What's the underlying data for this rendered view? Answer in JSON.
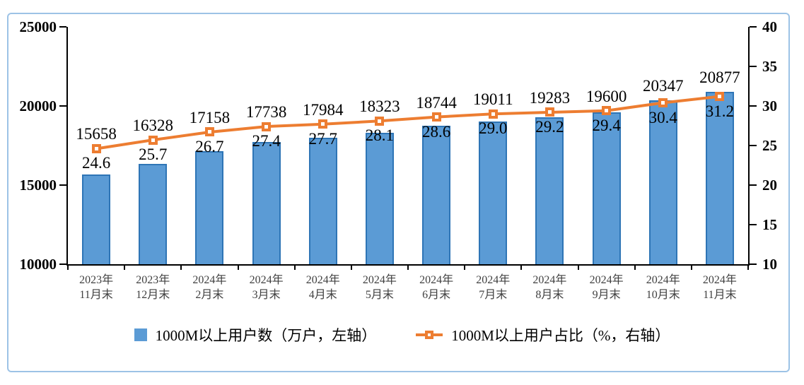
{
  "colors": {
    "bar_fill": "#5B9BD5",
    "bar_border": "#2E75B6",
    "line": "#ED7D31",
    "axis": "#000000",
    "frame_border": "#9DC3E6",
    "x_label": "#404040"
  },
  "legend": {
    "bar_label": "1000M以上用户数（万户，左轴）",
    "line_label": "1000M以上用户占比（%，右轴）"
  },
  "chart_data": {
    "type": "combo_bar_line",
    "title": "",
    "categories": [
      [
        "2023年",
        "11月末"
      ],
      [
        "2023年",
        "12月末"
      ],
      [
        "2024年",
        "2月末"
      ],
      [
        "2024年",
        "3月末"
      ],
      [
        "2024年",
        "4月末"
      ],
      [
        "2024年",
        "5月末"
      ],
      [
        "2024年",
        "6月末"
      ],
      [
        "2024年",
        "7月末"
      ],
      [
        "2024年",
        "8月末"
      ],
      [
        "2024年",
        "9月末"
      ],
      [
        "2024年",
        "10月末"
      ],
      [
        "2024年",
        "11月末"
      ]
    ],
    "series": [
      {
        "name": "1000M以上用户数（万户，左轴）",
        "type": "bar",
        "axis": "left",
        "color": "#5B9BD5",
        "border_color": "#2E75B6",
        "values": [
          15658,
          16328,
          17158,
          17738,
          17984,
          18323,
          18744,
          19011,
          19283,
          19600,
          20347,
          20877
        ]
      },
      {
        "name": "1000M以上用户占比（%，右轴）",
        "type": "line",
        "axis": "right",
        "color": "#ED7D31",
        "marker": "square",
        "label_decimals": 1,
        "values": [
          24.6,
          25.7,
          26.7,
          27.4,
          27.7,
          28.1,
          28.6,
          29.0,
          29.2,
          29.4,
          30.4,
          31.2
        ]
      }
    ],
    "left_axis": {
      "min": 10000,
      "max": 25000,
      "ticks": [
        25000,
        20000,
        15000,
        10000
      ]
    },
    "right_axis": {
      "min": 10,
      "max": 40,
      "ticks": [
        40,
        35,
        30,
        25,
        20,
        15,
        10
      ]
    },
    "data_labels": true,
    "grid": false,
    "legend_position": "bottom"
  }
}
